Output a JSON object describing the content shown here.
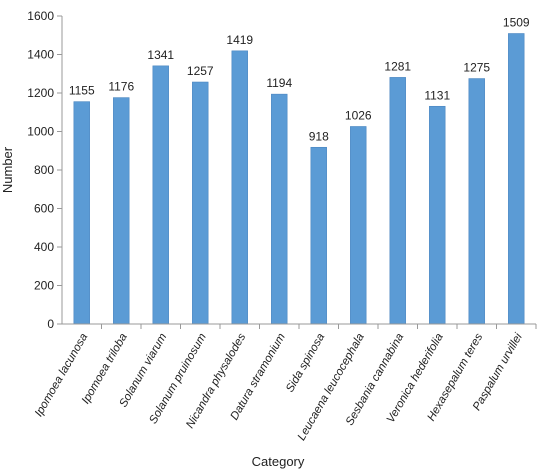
{
  "chart_data": {
    "type": "bar",
    "title": "",
    "xlabel": "Category",
    "ylabel": "Number",
    "ylim": [
      0,
      1600
    ],
    "yticks": [
      0,
      200,
      400,
      600,
      800,
      1000,
      1200,
      1400,
      1600
    ],
    "categories": [
      "Ipomoea lacunosa",
      "Ipomoea triloba",
      "Solanum viarum",
      "Solanum pruinosum",
      "Nicandra physalodes",
      "Datura stramonium",
      "Sida spinosa",
      "Leucaena leucocephala",
      "Sesbania cannabina",
      "Veronica hederifolia",
      "Hexasepalum teres",
      "Paspalum urvillei"
    ],
    "values": [
      1155,
      1176,
      1341,
      1257,
      1419,
      1194,
      918,
      1026,
      1281,
      1131,
      1275,
      1509
    ],
    "data_labels": true,
    "grid": false,
    "legend": "none",
    "colors": {
      "bar": "#5b9bd5",
      "bar_edge": "#4a86c0",
      "axis": "#999999",
      "text": "#222222"
    }
  }
}
